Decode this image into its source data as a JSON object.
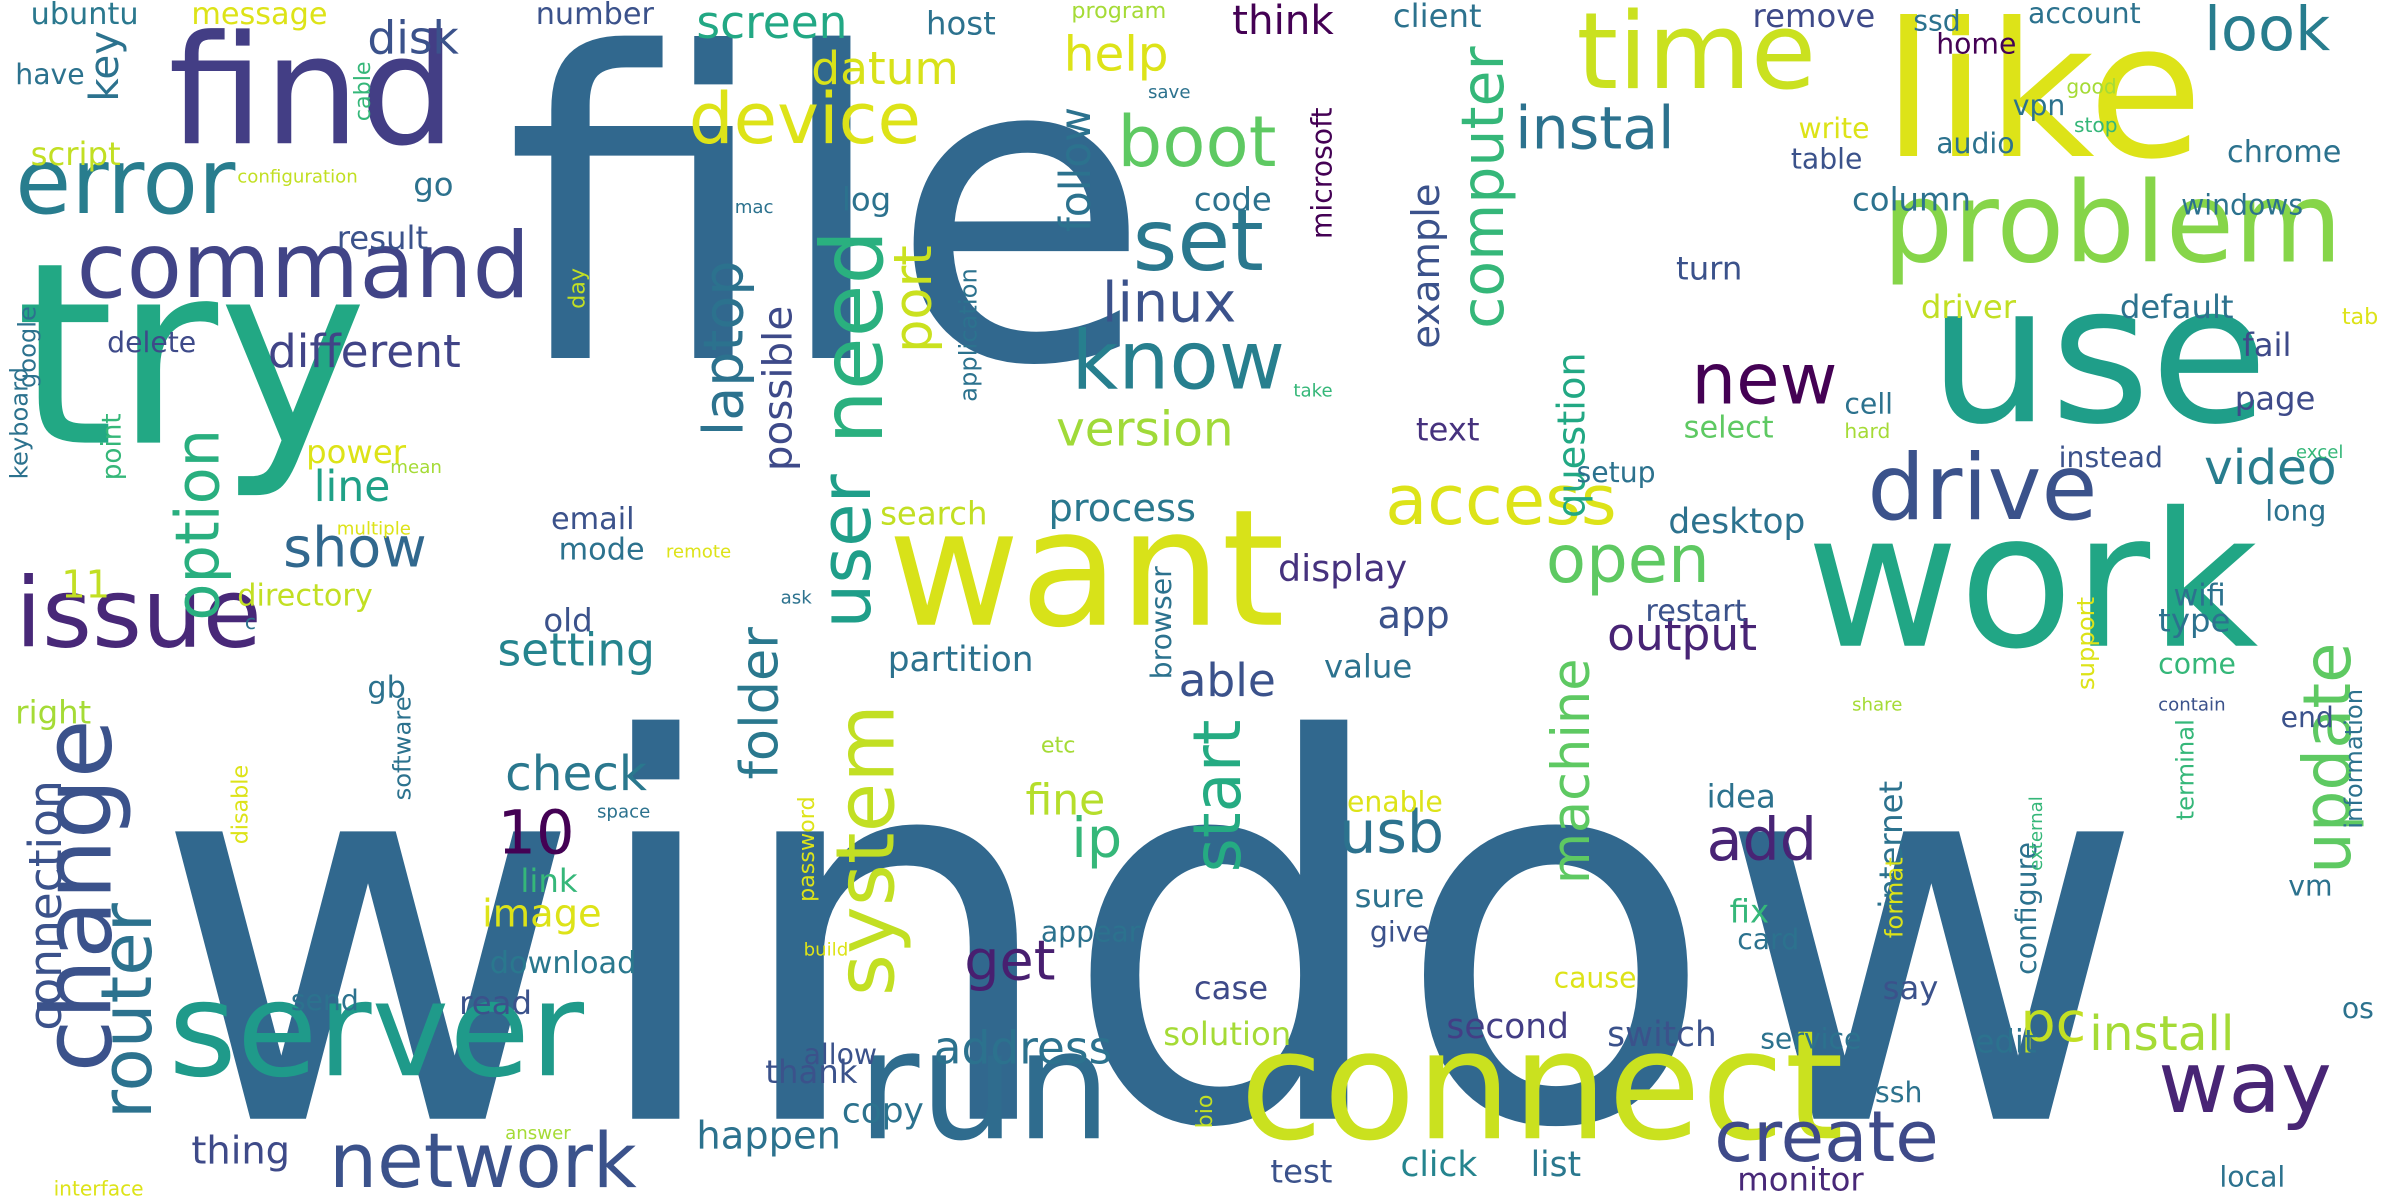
{
  "words": [
    {
      "text": "window",
      "size": 520,
      "color": "#31688e"
    },
    {
      "text": "file",
      "size": 420,
      "color": "#31688e"
    },
    {
      "text": "try",
      "size": 250,
      "color": "#22a884"
    },
    {
      "text": "use",
      "size": 190,
      "color": "#1f9e89"
    },
    {
      "text": "like",
      "size": 185,
      "color": "#dde318"
    },
    {
      "text": "work",
      "size": 185,
      "color": "#21a685"
    },
    {
      "text": "want",
      "size": 160,
      "color": "#d8e219"
    },
    {
      "text": "connect",
      "size": 150,
      "color": "#cae11f"
    },
    {
      "text": "run",
      "size": 150,
      "color": "#2f6c8e"
    },
    {
      "text": "find",
      "size": 150,
      "color": "#433e85"
    },
    {
      "text": "server",
      "size": 130,
      "color": "#1f9a8a"
    },
    {
      "text": "problem",
      "size": 110,
      "color": "#86d549"
    },
    {
      "text": "time",
      "size": 105,
      "color": "#cae11f"
    },
    {
      "text": "change",
      "size": 95,
      "color": "#3b528b"
    },
    {
      "text": "issue",
      "size": 95,
      "color": "#482878"
    },
    {
      "text": "command",
      "size": 90,
      "color": "#414487"
    },
    {
      "text": "error",
      "size": 90,
      "color": "#287d8e"
    },
    {
      "text": "drive",
      "size": 90,
      "color": "#3b528b"
    },
    {
      "text": "way",
      "size": 85,
      "color": "#482575"
    },
    {
      "text": "network",
      "size": 75,
      "color": "#3b528b"
    },
    {
      "text": "need",
      "size": 85,
      "color": "#2ab07f"
    },
    {
      "text": "system",
      "size": 80,
      "color": "#c2df23"
    },
    {
      "text": "set",
      "size": 85,
      "color": "#2a788e"
    },
    {
      "text": "know",
      "size": 80,
      "color": "#277f8e"
    },
    {
      "text": "boot",
      "size": 70,
      "color": "#5ec962"
    },
    {
      "text": "device",
      "size": 70,
      "color": "#dde318"
    },
    {
      "text": "create",
      "size": 70,
      "color": "#3e4a89"
    },
    {
      "text": "router",
      "size": 70,
      "color": "#2c728e"
    },
    {
      "text": "option",
      "size": 60,
      "color": "#29af7f"
    },
    {
      "text": "access",
      "size": 68,
      "color": "#dde318"
    },
    {
      "text": "new",
      "size": 70,
      "color": "#440154"
    },
    {
      "text": "user",
      "size": 70,
      "color": "#1f9e89"
    },
    {
      "text": "update",
      "size": 65,
      "color": "#5ec962"
    },
    {
      "text": "open",
      "size": 65,
      "color": "#5ec962"
    },
    {
      "text": "start",
      "size": 65,
      "color": "#25ab82"
    },
    {
      "text": "look",
      "size": 60,
      "color": "#287d8e"
    },
    {
      "text": "computer",
      "size": 58,
      "color": "#35b779"
    },
    {
      "text": "instal",
      "size": 58,
      "color": "#2c728e"
    },
    {
      "text": "add",
      "size": 58,
      "color": "#482475"
    },
    {
      "text": "usb",
      "size": 58,
      "color": "#2c728e"
    },
    {
      "text": "get",
      "size": 55,
      "color": "#481f70"
    },
    {
      "text": "show",
      "size": 55,
      "color": "#31688e"
    },
    {
      "text": "laptop",
      "size": 55,
      "color": "#2c728e"
    },
    {
      "text": "linux",
      "size": 55,
      "color": "#3b528b"
    },
    {
      "text": "folder",
      "size": 52,
      "color": "#2a788e"
    },
    {
      "text": "machine",
      "size": 52,
      "color": "#5ec962"
    },
    {
      "text": "ip",
      "size": 55,
      "color": "#35b779"
    },
    {
      "text": "pc",
      "size": 55,
      "color": "#c2df23"
    },
    {
      "text": "port",
      "size": 52,
      "color": "#cae11f"
    },
    {
      "text": "video",
      "size": 48,
      "color": "#287d8e"
    },
    {
      "text": "install",
      "size": 48,
      "color": "#a5db36"
    },
    {
      "text": "connection",
      "size": 45,
      "color": "#3b528b"
    },
    {
      "text": "different",
      "size": 45,
      "color": "#414487"
    },
    {
      "text": "help",
      "size": 48,
      "color": "#dde318"
    },
    {
      "text": "screen",
      "size": 45,
      "color": "#22a884"
    },
    {
      "text": "check",
      "size": 48,
      "color": "#2a788e"
    },
    {
      "text": "10",
      "size": 60,
      "color": "#440154"
    },
    {
      "text": "version",
      "size": 48,
      "color": "#a0da39"
    },
    {
      "text": "datum",
      "size": 45,
      "color": "#d8e219"
    },
    {
      "text": "disk",
      "size": 45,
      "color": "#3b528b"
    },
    {
      "text": "setting",
      "size": 45,
      "color": "#25848e"
    },
    {
      "text": "address",
      "size": 45,
      "color": "#2c728e"
    },
    {
      "text": "able",
      "size": 45,
      "color": "#3b528b"
    },
    {
      "text": "output",
      "size": 45,
      "color": "#482475"
    },
    {
      "text": "line",
      "size": 42,
      "color": "#1fa187"
    },
    {
      "text": "image",
      "size": 38,
      "color": "#dde318"
    },
    {
      "text": "fine",
      "size": 42,
      "color": "#b5de2b"
    },
    {
      "text": "follow",
      "size": 42,
      "color": "#2c728e"
    },
    {
      "text": "possible",
      "size": 40,
      "color": "#3e4a89"
    },
    {
      "text": "app",
      "size": 38,
      "color": "#3b528b"
    },
    {
      "text": "question",
      "size": 38,
      "color": "#22a884"
    },
    {
      "text": "example",
      "size": 38,
      "color": "#3b528b"
    },
    {
      "text": "happen",
      "size": 38,
      "color": "#2c728e"
    },
    {
      "text": "process",
      "size": 38,
      "color": "#2a788e"
    },
    {
      "text": "thing",
      "size": 38,
      "color": "#3e4a89"
    },
    {
      "text": "display",
      "size": 36,
      "color": "#46327e"
    },
    {
      "text": "desktop",
      "size": 34,
      "color": "#2c728e"
    },
    {
      "text": "partition",
      "size": 34,
      "color": "#2c728e"
    },
    {
      "text": "second",
      "size": 34,
      "color": "#433e85"
    },
    {
      "text": "switch",
      "size": 34,
      "color": "#3b528b"
    },
    {
      "text": "test",
      "size": 32,
      "color": "#3b528b"
    },
    {
      "text": "click",
      "size": 34,
      "color": "#25848e"
    },
    {
      "text": "list",
      "size": 34,
      "color": "#2a788e"
    },
    {
      "text": "monitor",
      "size": 32,
      "color": "#482878"
    },
    {
      "text": "copy",
      "size": 34,
      "color": "#2c728e"
    },
    {
      "text": "thank",
      "size": 32,
      "color": "#3b528b"
    },
    {
      "text": "solution",
      "size": 32,
      "color": "#a5db36"
    },
    {
      "text": "case",
      "size": 32,
      "color": "#3e4a89"
    },
    {
      "text": "edit",
      "size": 32,
      "color": "#2c728e"
    },
    {
      "text": "say",
      "size": 32,
      "color": "#3b528b"
    },
    {
      "text": "value",
      "size": 32,
      "color": "#2c728e"
    },
    {
      "text": "type",
      "size": 32,
      "color": "#2c728e"
    },
    {
      "text": "page",
      "size": 32,
      "color": "#3e4a89"
    },
    {
      "text": "fail",
      "size": 32,
      "color": "#3e4a89"
    },
    {
      "text": "default",
      "size": 32,
      "color": "#2c728e"
    },
    {
      "text": "driver",
      "size": 32,
      "color": "#c2df23"
    },
    {
      "text": "turn",
      "size": 32,
      "color": "#3b528b"
    },
    {
      "text": "column",
      "size": 32,
      "color": "#2c728e"
    },
    {
      "text": "code",
      "size": 32,
      "color": "#2c728e"
    },
    {
      "text": "result",
      "size": 32,
      "color": "#3b528b"
    },
    {
      "text": "go",
      "size": 32,
      "color": "#2c728e"
    },
    {
      "text": "log",
      "size": 32,
      "color": "#2c728e"
    },
    {
      "text": "think",
      "size": 40,
      "color": "#440154"
    },
    {
      "text": "client",
      "size": 32,
      "color": "#2c728e"
    },
    {
      "text": "remove",
      "size": 32,
      "color": "#3e4a89"
    },
    {
      "text": "account",
      "size": 28,
      "color": "#2c728e"
    },
    {
      "text": "host",
      "size": 32,
      "color": "#2c728e"
    },
    {
      "text": "number",
      "size": 30,
      "color": "#3b528b"
    },
    {
      "text": "ubuntu",
      "size": 30,
      "color": "#2a788e"
    },
    {
      "text": "message",
      "size": 30,
      "color": "#dde318"
    },
    {
      "text": "have",
      "size": 28,
      "color": "#2c728e"
    },
    {
      "text": "script",
      "size": 32,
      "color": "#c2df23"
    },
    {
      "text": "key",
      "size": 40,
      "color": "#2c728e"
    },
    {
      "text": "delete",
      "size": 28,
      "color": "#3e4a89"
    },
    {
      "text": "power",
      "size": 32,
      "color": "#dde318"
    },
    {
      "text": "email",
      "size": 30,
      "color": "#3b528b"
    },
    {
      "text": "mode",
      "size": 30,
      "color": "#2c728e"
    },
    {
      "text": "old",
      "size": 32,
      "color": "#3b528b"
    },
    {
      "text": "directory",
      "size": 30,
      "color": "#c2df23"
    },
    {
      "text": "gb",
      "size": 30,
      "color": "#2c728e"
    },
    {
      "text": "right",
      "size": 32,
      "color": "#a5db36"
    },
    {
      "text": "11",
      "size": 38,
      "color": "#c2df23"
    },
    {
      "text": "link",
      "size": 32,
      "color": "#35b779"
    },
    {
      "text": "download",
      "size": 30,
      "color": "#2a788e"
    },
    {
      "text": "read",
      "size": 32,
      "color": "#3b528b"
    },
    {
      "text": "send",
      "size": 28,
      "color": "#2c728e"
    },
    {
      "text": "search",
      "size": 32,
      "color": "#c2df23"
    },
    {
      "text": "setup",
      "size": 28,
      "color": "#2c728e"
    },
    {
      "text": "text",
      "size": 32,
      "color": "#46327e"
    },
    {
      "text": "select",
      "size": 30,
      "color": "#5ec962"
    },
    {
      "text": "cell",
      "size": 28,
      "color": "#2c728e"
    },
    {
      "text": "instead",
      "size": 28,
      "color": "#3b528b"
    },
    {
      "text": "long",
      "size": 28,
      "color": "#2c728e"
    },
    {
      "text": "restart",
      "size": 30,
      "color": "#3b528b"
    },
    {
      "text": "idea",
      "size": 32,
      "color": "#2c728e"
    },
    {
      "text": "sure",
      "size": 32,
      "color": "#2c728e"
    },
    {
      "text": "give",
      "size": 28,
      "color": "#3b528b"
    },
    {
      "text": "fix",
      "size": 32,
      "color": "#35b779"
    },
    {
      "text": "card",
      "size": 28,
      "color": "#2c728e"
    },
    {
      "text": "cause",
      "size": 28,
      "color": "#dde318"
    },
    {
      "text": "appear",
      "size": 28,
      "color": "#2c728e"
    },
    {
      "text": "allow",
      "size": 28,
      "color": "#3b528b"
    },
    {
      "text": "service",
      "size": 28,
      "color": "#2c728e"
    },
    {
      "text": "ssh",
      "size": 28,
      "color": "#2c728e"
    },
    {
      "text": "local",
      "size": 28,
      "color": "#2c728e"
    },
    {
      "text": "end",
      "size": 28,
      "color": "#3b528b"
    },
    {
      "text": "wifi",
      "size": 30,
      "color": "#2c728e"
    },
    {
      "text": "come",
      "size": 28,
      "color": "#35b779"
    },
    {
      "text": "audio",
      "size": 28,
      "color": "#2c728e"
    },
    {
      "text": "table",
      "size": 28,
      "color": "#3b528b"
    },
    {
      "text": "write",
      "size": 28,
      "color": "#dde318"
    },
    {
      "text": "vpn",
      "size": 28,
      "color": "#2c728e"
    },
    {
      "text": "chrome",
      "size": 30,
      "color": "#2c728e"
    },
    {
      "text": "windows",
      "size": 28,
      "color": "#2c728e"
    },
    {
      "text": "home",
      "size": 28,
      "color": "#440154"
    },
    {
      "text": "ssd",
      "size": 28,
      "color": "#2c728e"
    },
    {
      "text": "internet",
      "size": 32,
      "color": "#2c728e"
    },
    {
      "text": "enable",
      "size": 28,
      "color": "#dde318"
    },
    {
      "text": "microsoft",
      "size": 28,
      "color": "#440154"
    },
    {
      "text": "browser",
      "size": 28,
      "color": "#2c728e"
    },
    {
      "text": "application",
      "size": 24,
      "color": "#2c728e"
    },
    {
      "text": "software",
      "size": 24,
      "color": "#2c728e"
    },
    {
      "text": "password",
      "size": 22,
      "color": "#dde318"
    },
    {
      "text": "configure",
      "size": 28,
      "color": "#2c728e"
    },
    {
      "text": "format",
      "size": 24,
      "color": "#dde318"
    },
    {
      "text": "support",
      "size": 24,
      "color": "#dde318"
    },
    {
      "text": "terminal",
      "size": 24,
      "color": "#35b779"
    },
    {
      "text": "information",
      "size": 24,
      "color": "#2c728e"
    },
    {
      "text": "os",
      "size": 28,
      "color": "#2c728e"
    },
    {
      "text": "vm",
      "size": 28,
      "color": "#2c728e"
    },
    {
      "text": "excel",
      "size": 18,
      "color": "#35b779"
    },
    {
      "text": "tab",
      "size": 22,
      "color": "#dde318"
    },
    {
      "text": "stop",
      "size": 20,
      "color": "#35b779"
    },
    {
      "text": "good",
      "size": 20,
      "color": "#a5db36"
    },
    {
      "text": "save",
      "size": 18,
      "color": "#2c728e"
    },
    {
      "text": "program",
      "size": 22,
      "color": "#a5db36"
    },
    {
      "text": "cable",
      "size": 22,
      "color": "#35b779"
    },
    {
      "text": "configuration",
      "size": 18,
      "color": "#c2df23"
    },
    {
      "text": "mac",
      "size": 18,
      "color": "#2c728e"
    },
    {
      "text": "day",
      "size": 22,
      "color": "#c2df23"
    },
    {
      "text": "google",
      "size": 24,
      "color": "#2c728e"
    },
    {
      "text": "keyboard",
      "size": 24,
      "color": "#2c728e"
    },
    {
      "text": "point",
      "size": 26,
      "color": "#35b779"
    },
    {
      "text": "mean",
      "size": 18,
      "color": "#a5db36"
    },
    {
      "text": "multiple",
      "size": 18,
      "color": "#dde318"
    },
    {
      "text": "remote",
      "size": 18,
      "color": "#dde318"
    },
    {
      "text": "ask",
      "size": 18,
      "color": "#2c728e"
    },
    {
      "text": "take",
      "size": 18,
      "color": "#35b779"
    },
    {
      "text": "hard",
      "size": 20,
      "color": "#a5db36"
    },
    {
      "text": "share",
      "size": 18,
      "color": "#a5db36"
    },
    {
      "text": "contain",
      "size": 18,
      "color": "#3b528b"
    },
    {
      "text": "external",
      "size": 18,
      "color": "#35b779"
    },
    {
      "text": "etc",
      "size": 22,
      "color": "#a5db36"
    },
    {
      "text": "bio",
      "size": 22,
      "color": "#c2df23"
    },
    {
      "text": "build",
      "size": 18,
      "color": "#dde318"
    },
    {
      "text": "space",
      "size": 18,
      "color": "#2c728e"
    },
    {
      "text": "disable",
      "size": 22,
      "color": "#dde318"
    },
    {
      "text": "answer",
      "size": 18,
      "color": "#a5db36"
    },
    {
      "text": "interface",
      "size": 20,
      "color": "#dde318"
    },
    {
      "text": "c",
      "size": 20,
      "color": "#2c728e"
    }
  ]
}
